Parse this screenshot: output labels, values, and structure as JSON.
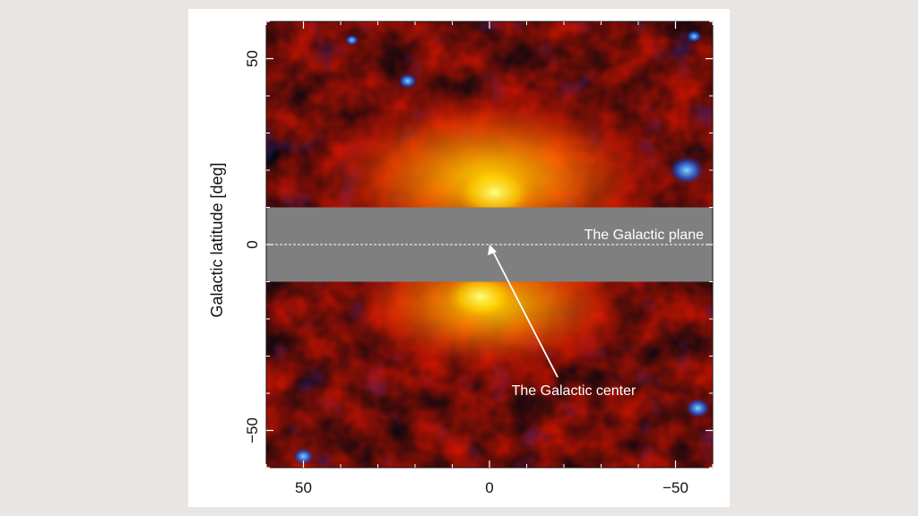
{
  "chart_data": {
    "type": "heatmap",
    "title": "",
    "xlabel": "",
    "ylabel": "Galactic latitude [deg]",
    "xlim": [
      60,
      -60
    ],
    "ylim": [
      -60,
      60
    ],
    "x_ticks": [
      50,
      0,
      -50
    ],
    "y_ticks": [
      50,
      0,
      -50
    ],
    "x_tick_labels": [
      "50",
      "0",
      "−50"
    ],
    "y_tick_labels": [
      "50",
      "0",
      "−50"
    ],
    "masked_band": {
      "b_min": -10,
      "b_max": 10,
      "color": "#7f7f7f"
    },
    "plane_line": {
      "b": 0,
      "label": "The Galactic plane"
    },
    "center_marker": {
      "l": 0,
      "b": 0,
      "label": "The Galactic center"
    },
    "colormap": [
      "#0a1a6e",
      "#060612",
      "#6a0000",
      "#d81000",
      "#ff6a00",
      "#ffd400",
      "#ffff90"
    ],
    "bright_region": {
      "l_range": [
        -20,
        20
      ],
      "b_range": [
        -30,
        40
      ],
      "shape": "bubble"
    },
    "grid": false,
    "legend": "none"
  }
}
